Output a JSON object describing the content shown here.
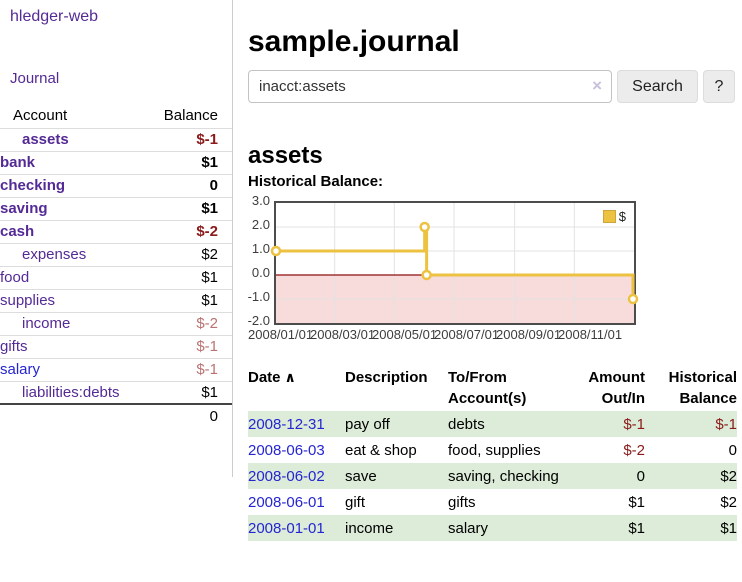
{
  "app": {
    "brand": "hledger-web",
    "nav": {
      "journal": "Journal"
    }
  },
  "sidebar": {
    "account_header": "Account",
    "balance_header": "Balance",
    "accounts": [
      {
        "name": "assets",
        "balance": "$-1"
      },
      {
        "name": "bank",
        "balance": "$1"
      },
      {
        "name": "checking",
        "balance": "0"
      },
      {
        "name": "saving",
        "balance": "$1"
      },
      {
        "name": "cash",
        "balance": "$-2"
      },
      {
        "name": "expenses",
        "balance": "$2"
      },
      {
        "name": "food",
        "balance": "$1"
      },
      {
        "name": "supplies",
        "balance": "$1"
      },
      {
        "name": "income",
        "balance": "$-2"
      },
      {
        "name": "gifts",
        "balance": "$-1"
      },
      {
        "name": "salary",
        "balance": "$-1"
      },
      {
        "name": "liabilities:debts",
        "balance": "$1"
      }
    ],
    "total": "0"
  },
  "main": {
    "title": "sample.journal",
    "search": {
      "value": "inacct:assets",
      "clear_icon": "×",
      "search_button": "Search",
      "help_button": "?"
    },
    "account_heading": "assets",
    "section_label": "Historical Balance:"
  },
  "chart_data": {
    "type": "line",
    "title": "Historical Balance:",
    "series": [
      {
        "name": "$",
        "step": true,
        "color": "#edc240",
        "points": [
          [
            "2008-01-01",
            1
          ],
          [
            "2008-06-01",
            2
          ],
          [
            "2008-06-03",
            0
          ],
          [
            "2008-12-31",
            -1
          ]
        ]
      }
    ],
    "ylim": [
      -2,
      3
    ],
    "yticks": [
      3.0,
      2.0,
      1.0,
      0.0,
      -1.0,
      -2.0
    ],
    "ytick_labels": [
      "3.0",
      "2.0",
      "1.0",
      "0.0",
      "-1.0",
      "-2.0"
    ],
    "xtick_labels": [
      "2008/01/01",
      "2008/03/01",
      "2008/05/01",
      "2008/07/01",
      "2008/09/01",
      "2008/11/01"
    ],
    "xrange": [
      "2008-01-01",
      "2008-12-31"
    ],
    "legend": "$",
    "legend_position": "top-right",
    "grid": true,
    "grid_color": "#e3e3e3",
    "negative_region_color": "#f8dbdb",
    "zero_line_color": "#a03434"
  },
  "register": {
    "headers": {
      "date": "Date",
      "sort_icon": "∧",
      "description": "Description",
      "accounts": "To/From Account(s)",
      "amount": "Amount Out/In",
      "balance": "Historical Balance"
    },
    "rows": [
      {
        "date": "2008-12-31",
        "description": "pay off",
        "accounts": "debts",
        "amount": "$-1",
        "balance": "$-1"
      },
      {
        "date": "2008-06-03",
        "description": "eat & shop",
        "accounts": "food, supplies",
        "amount": "$-2",
        "balance": "0"
      },
      {
        "date": "2008-06-02",
        "description": "save",
        "accounts": "saving, checking",
        "amount": "0",
        "balance": "$2"
      },
      {
        "date": "2008-06-01",
        "description": "gift",
        "accounts": "gifts",
        "amount": "$1",
        "balance": "$2"
      },
      {
        "date": "2008-01-01",
        "description": "income",
        "accounts": "salary",
        "amount": "$1",
        "balance": "$1"
      }
    ]
  },
  "colors": {
    "link_purple": "#542a95",
    "link_blue": "#2525d2",
    "negative_strong": "#8b1a1a",
    "negative_muted": "#bb7273",
    "row_green": "#dcecd8",
    "series_gold": "#edc240"
  }
}
